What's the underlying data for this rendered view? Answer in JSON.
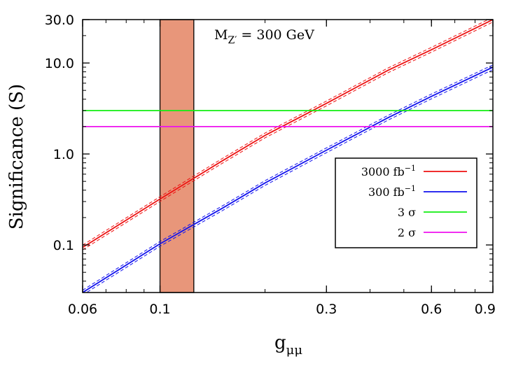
{
  "chart_data": {
    "type": "line",
    "title": "",
    "annotation": "M_{Z'} = 300 GeV",
    "annotation_parts": {
      "base": "M",
      "sub": "Z′",
      "rest": " = 300 GeV"
    },
    "xlabel": "g_{μμ}",
    "xlabel_parts": {
      "base": "g",
      "sub": "μμ"
    },
    "ylabel": "Significance (S)",
    "x_scale": "log",
    "y_scale": "log",
    "xlim": [
      0.06,
      0.9
    ],
    "ylim": [
      0.03,
      30.0
    ],
    "x_ticks": [
      0.06,
      0.1,
      0.3,
      0.6,
      0.9
    ],
    "x_tick_labels": [
      "0.06",
      "0.1",
      "0.3",
      "0.6",
      "0.9"
    ],
    "y_ticks": [
      0.1,
      1.0,
      10.0,
      30.0
    ],
    "y_tick_labels": [
      "0.1",
      "1.0",
      "10.0",
      "30.0"
    ],
    "grid": false,
    "legend_position": "right",
    "shaded_band": {
      "x_range": [
        0.1,
        0.125
      ],
      "color": "#e8967a"
    },
    "series": [
      {
        "name": "3000 fb^{-1}",
        "legend_base": "3000 fb",
        "legend_sup": "−1",
        "color": "#ee1111",
        "style": "band",
        "x": [
          0.06,
          0.1,
          0.15,
          0.2,
          0.3,
          0.45,
          0.6,
          0.9
        ],
        "y": [
          0.094,
          0.32,
          0.83,
          1.6,
          3.6,
          8.3,
          14.0,
          30.0
        ]
      },
      {
        "name": "300 fb^{-1}",
        "legend_base": "300 fb",
        "legend_sup": "−1",
        "color": "#1111ee",
        "style": "band",
        "x": [
          0.06,
          0.1,
          0.15,
          0.2,
          0.3,
          0.45,
          0.6,
          0.9
        ],
        "y": [
          0.03,
          0.103,
          0.25,
          0.48,
          1.1,
          2.5,
          4.3,
          9.0
        ]
      },
      {
        "name": "3 σ",
        "legend_base": "3 σ",
        "legend_sup": "",
        "color": "#11ee11",
        "style": "hline",
        "x": [
          0.06,
          0.9
        ],
        "y": [
          3.0,
          3.0
        ]
      },
      {
        "name": "2 σ",
        "legend_base": "2 σ",
        "legend_sup": "",
        "color": "#ee11ee",
        "style": "hline",
        "x": [
          0.06,
          0.9
        ],
        "y": [
          2.0,
          2.0
        ]
      }
    ]
  }
}
